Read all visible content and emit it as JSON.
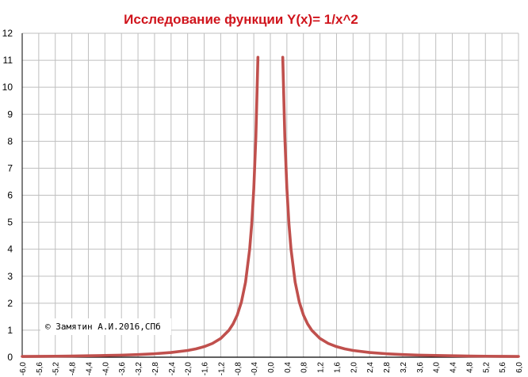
{
  "chart_data": {
    "type": "line",
    "title": "Исследование функции Y(x)= 1/x^2",
    "xlabel": "",
    "ylabel": "",
    "ylim": [
      0,
      12
    ],
    "grid": true,
    "legend": "none",
    "y_ticks": [
      "0",
      "1",
      "2",
      "3",
      "4",
      "5",
      "6",
      "7",
      "8",
      "9",
      "10",
      "11",
      "12"
    ],
    "x_ticks": [
      "-6,0",
      "-5,6",
      "-5,2",
      "-4,8",
      "-4,4",
      "-4,0",
      "-3,6",
      "-3,2",
      "-2,8",
      "-2,4",
      "-2,0",
      "-1,6",
      "-1,2",
      "-0,8",
      "-0,4",
      "0,0",
      "0,4",
      "0,8",
      "1,2",
      "1,6",
      "2,0",
      "2,4",
      "2,8",
      "3,2",
      "3,6",
      "4,0",
      "4,4",
      "4,8",
      "5,2",
      "5,6",
      "6,0"
    ],
    "x_tick_values": [
      -6.0,
      -5.6,
      -5.2,
      -4.8,
      -4.4,
      -4.0,
      -3.6,
      -3.2,
      -2.8,
      -2.4,
      -2.0,
      -1.6,
      -1.2,
      -0.8,
      -0.4,
      0.0,
      0.4,
      0.8,
      1.2,
      1.6,
      2.0,
      2.4,
      2.8,
      3.2,
      3.6,
      4.0,
      4.4,
      4.8,
      5.2,
      5.6,
      6.0
    ],
    "series": [
      {
        "values_x": [
          -6.0,
          -5.6,
          -5.2,
          -4.8,
          -4.4,
          -4.0,
          -3.6,
          -3.2,
          -2.8,
          -2.4,
          -2.0,
          -1.8,
          -1.6,
          -1.4,
          -1.2,
          -1.0,
          -0.9,
          -0.8,
          -0.7,
          -0.6,
          -0.5,
          -0.45,
          -0.4,
          -0.35,
          -0.3
        ],
        "values_y": [
          0.028,
          0.032,
          0.037,
          0.043,
          0.052,
          0.063,
          0.077,
          0.098,
          0.128,
          0.174,
          0.25,
          0.309,
          0.391,
          0.51,
          0.694,
          1.0,
          1.235,
          1.563,
          2.041,
          2.778,
          4.0,
          4.938,
          6.25,
          8.163,
          11.111
        ],
        "color": "#c0504d"
      },
      {
        "values_x": [
          0.3,
          0.35,
          0.4,
          0.45,
          0.5,
          0.6,
          0.7,
          0.8,
          0.9,
          1.0,
          1.2,
          1.4,
          1.6,
          1.8,
          2.0,
          2.4,
          2.8,
          3.2,
          3.6,
          4.0,
          4.4,
          4.8,
          5.2,
          5.6,
          6.0
        ],
        "values_y": [
          11.111,
          8.163,
          6.25,
          4.938,
          4.0,
          2.778,
          2.041,
          1.563,
          1.235,
          1.0,
          0.694,
          0.51,
          0.391,
          0.309,
          0.25,
          0.174,
          0.128,
          0.098,
          0.077,
          0.063,
          0.052,
          0.043,
          0.037,
          0.032,
          0.028
        ],
        "color": "#c0504d"
      }
    ],
    "axis_color": "#000000",
    "grid_color": "#bfbfbf"
  },
  "copyright": {
    "symbol": "©",
    "text": "Замятин А.И.2016,СПб"
  }
}
